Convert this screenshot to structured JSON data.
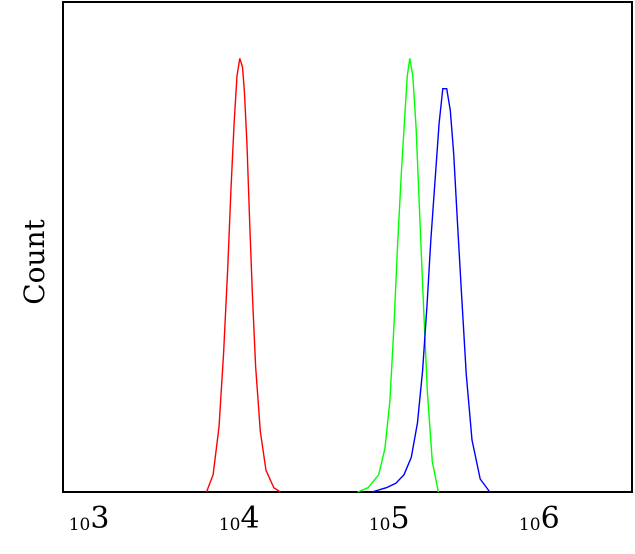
{
  "chart_data": {
    "type": "line",
    "title": "",
    "xlabel": "",
    "ylabel": "Count",
    "x_scale": "log",
    "xlim": [
      630,
      3900000
    ],
    "ylim": [
      0,
      1.13
    ],
    "grid": false,
    "legend": "none",
    "ticks": [
      {
        "base": "10",
        "exp": "3",
        "value": 1000
      },
      {
        "base": "10",
        "exp": "4",
        "value": 10000
      },
      {
        "base": "10",
        "exp": "5",
        "value": 100000
      },
      {
        "base": "10",
        "exp": "6",
        "value": 1000000
      }
    ],
    "series": [
      {
        "color": "#ff0000",
        "x": [
          5700,
          6300,
          6900,
          7400,
          7900,
          8300,
          8700,
          9100,
          9500,
          9900,
          10200,
          10600,
          11000,
          11500,
          12100,
          13000,
          14200,
          16000,
          17700
        ],
        "y": [
          0.0,
          0.04,
          0.15,
          0.32,
          0.52,
          0.7,
          0.85,
          0.96,
          1.0,
          0.98,
          0.92,
          0.8,
          0.64,
          0.46,
          0.29,
          0.14,
          0.05,
          0.01,
          0.0
        ]
      },
      {
        "color": "#00ff00",
        "x": [
          58000,
          68000,
          80000,
          88000,
          95000,
          101000,
          107000,
          113000,
          119000,
          124000,
          129000,
          135000,
          142000,
          150000,
          159000,
          169000,
          182000,
          200000
        ],
        "y": [
          0.0,
          0.01,
          0.04,
          0.1,
          0.21,
          0.38,
          0.57,
          0.73,
          0.86,
          0.96,
          1.0,
          0.96,
          0.84,
          0.64,
          0.43,
          0.23,
          0.07,
          0.0
        ]
      },
      {
        "color": "#0000ff",
        "x": [
          72000,
          90000,
          104000,
          118000,
          132000,
          145000,
          157000,
          168000,
          178000,
          190000,
          202000,
          214000,
          227000,
          240000,
          253000,
          268000,
          286000,
          307000,
          335000,
          380000,
          440000
        ],
        "y": [
          0.0,
          0.01,
          0.02,
          0.04,
          0.08,
          0.16,
          0.28,
          0.43,
          0.58,
          0.72,
          0.85,
          0.93,
          0.93,
          0.88,
          0.78,
          0.62,
          0.45,
          0.27,
          0.12,
          0.03,
          0.0
        ]
      }
    ]
  }
}
